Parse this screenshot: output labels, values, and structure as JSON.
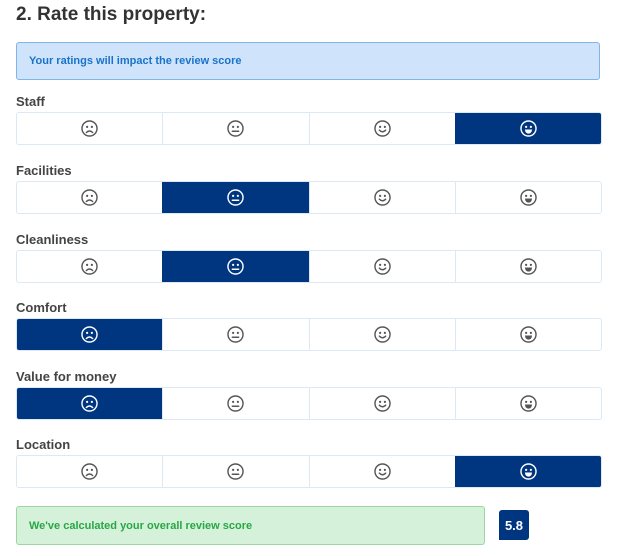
{
  "section": {
    "title": "2. Rate this property:"
  },
  "info_message": "Your ratings will impact the review score",
  "face_scale": [
    "sad",
    "neutral",
    "smile",
    "grin"
  ],
  "ratings": [
    {
      "label": "Staff",
      "selected": 3
    },
    {
      "label": "Facilities",
      "selected": 1
    },
    {
      "label": "Cleanliness",
      "selected": 1
    },
    {
      "label": "Comfort",
      "selected": 0
    },
    {
      "label": "Value for money",
      "selected": 0
    },
    {
      "label": "Location",
      "selected": 3
    }
  ],
  "overall": {
    "message": "We've calculated your overall review score",
    "score": "5.8"
  },
  "colors": {
    "selected": "#003580",
    "info_bg": "#cfe3fb",
    "success_bg": "#d6f1d9",
    "success_text": "#28a745"
  }
}
